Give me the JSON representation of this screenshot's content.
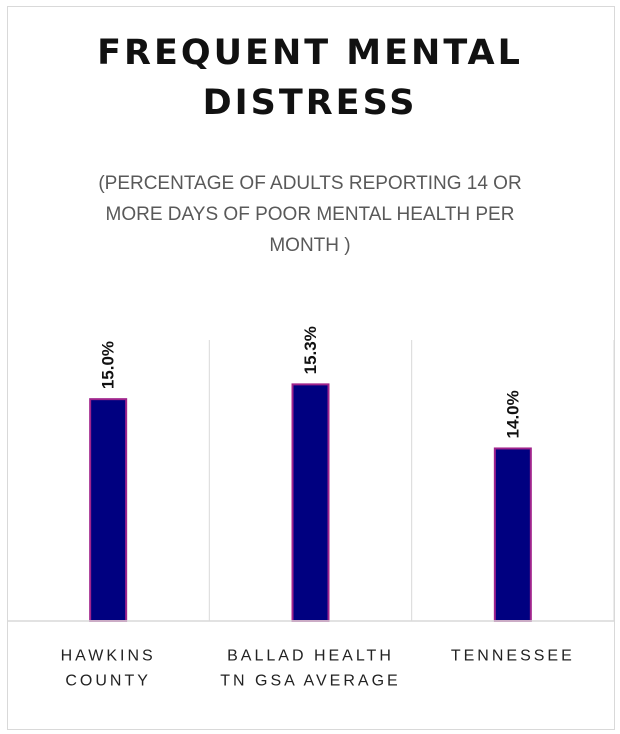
{
  "chart_data": {
    "type": "bar",
    "title_lines": [
      "FREQUENT MENTAL",
      "DISTRESS"
    ],
    "subtitle": "(PERCENTAGE OF ADULTS REPORTING 14 OR MORE DAYS OF POOR MENTAL HEALTH PER MONTH )",
    "categories": [
      [
        "HAWKINS",
        "COUNTY"
      ],
      [
        "BALLAD HEALTH",
        "TN GSA AVERAGE"
      ],
      [
        "TENNESSEE"
      ]
    ],
    "values": [
      15.0,
      15.3,
      14.0
    ],
    "data_labels": [
      "15.0%",
      "15.3%",
      "14.0%"
    ],
    "ylim": [
      10.5,
      16.2
    ],
    "grid": "vertical category separators",
    "colors": {
      "bar_fill": "#000080",
      "bar_stroke": "#a0248c",
      "grid": "#d9d9d9"
    }
  }
}
